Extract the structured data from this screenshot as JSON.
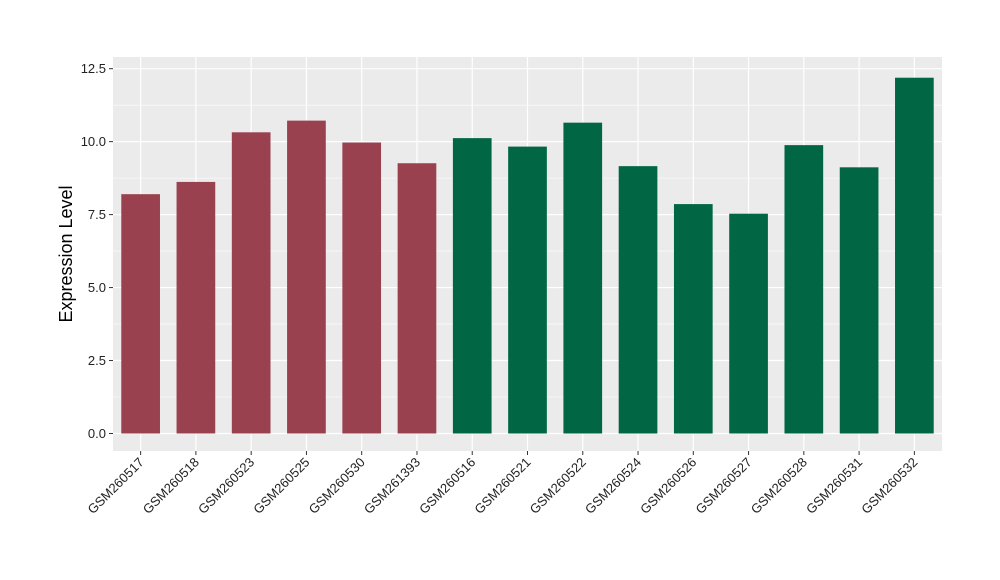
{
  "chart_data": {
    "type": "bar",
    "xlabel": "",
    "ylabel": "Expression Level",
    "ylim": [
      -0.6,
      12.9
    ],
    "yticks": [
      0.0,
      2.5,
      5.0,
      7.5,
      10.0,
      12.5
    ],
    "ytick_labels": [
      "0.0",
      "2.5",
      "5.0",
      "7.5",
      "10.0",
      "12.5"
    ],
    "grid": true,
    "legend": "none",
    "panel_background": "#ebebeb",
    "grid_color": "#ffffff",
    "categories": [
      "GSM260517",
      "GSM260518",
      "GSM260523",
      "GSM260525",
      "GSM260530",
      "GSM261393",
      "GSM260516",
      "GSM260521",
      "GSM260522",
      "GSM260524",
      "GSM260526",
      "GSM260527",
      "GSM260528",
      "GSM260531",
      "GSM260532"
    ],
    "values": [
      8.2,
      8.62,
      10.32,
      10.72,
      9.97,
      9.26,
      10.12,
      9.83,
      10.65,
      9.16,
      7.86,
      7.53,
      9.88,
      9.12,
      12.19
    ],
    "bar_colors": [
      "#99414f",
      "#99414f",
      "#99414f",
      "#99414f",
      "#99414f",
      "#99414f",
      "#006644",
      "#006644",
      "#006644",
      "#006644",
      "#006644",
      "#006644",
      "#006644",
      "#006644",
      "#006644"
    ]
  }
}
